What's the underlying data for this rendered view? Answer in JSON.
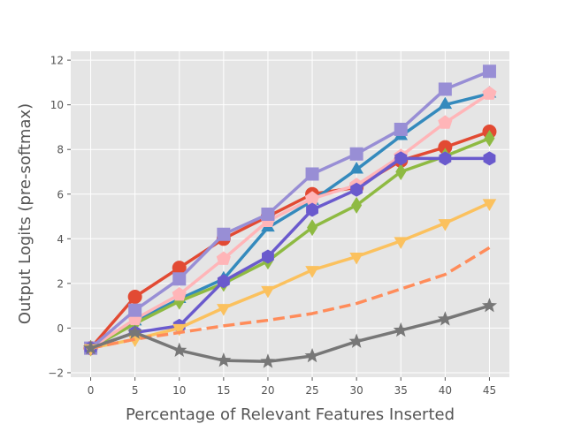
{
  "chart_data": {
    "type": "line",
    "title": "",
    "xlabel": "Percentage of Relevant Features Inserted",
    "ylabel": "Output Logits (pre-softmax)",
    "x": [
      0,
      5,
      10,
      15,
      20,
      25,
      30,
      35,
      40,
      45
    ],
    "x_ticks": [
      "0",
      "5",
      "10",
      "15",
      "20",
      "25",
      "30",
      "35",
      "40",
      "45"
    ],
    "y_ticks": [
      "−2",
      "0",
      "2",
      "4",
      "6",
      "8",
      "10",
      "12"
    ],
    "xlim": [
      -2.25,
      47.25
    ],
    "ylim": [
      -2.2,
      12.4
    ],
    "grid": true,
    "background": "#E5E5E5",
    "series": [
      {
        "values": [
          -0.9,
          1.4,
          2.7,
          4.0,
          5.0,
          6.0,
          6.3,
          7.5,
          8.1,
          8.8
        ],
        "color": "#E24A33",
        "marker": "circle",
        "line": "solid"
      },
      {
        "values": [
          -0.9,
          0.3,
          1.3,
          2.2,
          4.5,
          5.7,
          7.1,
          8.6,
          10.0,
          10.5
        ],
        "color": "#348ABD",
        "marker": "triangle-up",
        "line": "solid"
      },
      {
        "values": [
          -0.9,
          0.2,
          1.2,
          2.0,
          3.0,
          4.5,
          5.5,
          7.0,
          7.7,
          8.5
        ],
        "color": "#8EBA42",
        "marker": "diamond",
        "line": "solid"
      },
      {
        "values": [
          -0.9,
          0.4,
          1.5,
          3.1,
          4.8,
          5.8,
          6.4,
          7.7,
          9.2,
          10.5
        ],
        "color": "#FFB5B8",
        "marker": "pentagon",
        "line": "solid"
      },
      {
        "values": [
          -0.9,
          0.8,
          2.2,
          4.2,
          5.1,
          6.9,
          7.8,
          8.9,
          10.7,
          11.5
        ],
        "color": "#988ED5",
        "marker": "square",
        "line": "solid"
      },
      {
        "values": [
          -0.9,
          -0.2,
          0.1,
          2.1,
          3.2,
          5.3,
          6.2,
          7.6,
          7.6,
          7.6
        ],
        "color": "#6A5ACD",
        "marker": "hexagon",
        "line": "solid"
      },
      {
        "values": [
          -0.9,
          -0.5,
          0.0,
          0.9,
          1.7,
          2.6,
          3.2,
          3.9,
          4.7,
          5.6
        ],
        "color": "#FBC15E",
        "marker": "triangle-down",
        "line": "solid"
      },
      {
        "values": [
          -0.9,
          -0.5,
          -0.2,
          0.1,
          0.35,
          0.65,
          1.1,
          1.75,
          2.4,
          3.6
        ],
        "color": "#FF8C5A",
        "marker": "none",
        "line": "dashed"
      },
      {
        "values": [
          -0.9,
          -0.2,
          -1.0,
          -1.45,
          -1.5,
          -1.25,
          -0.6,
          -0.1,
          0.4,
          1.0
        ],
        "color": "#777777",
        "marker": "star",
        "line": "solid"
      }
    ]
  }
}
